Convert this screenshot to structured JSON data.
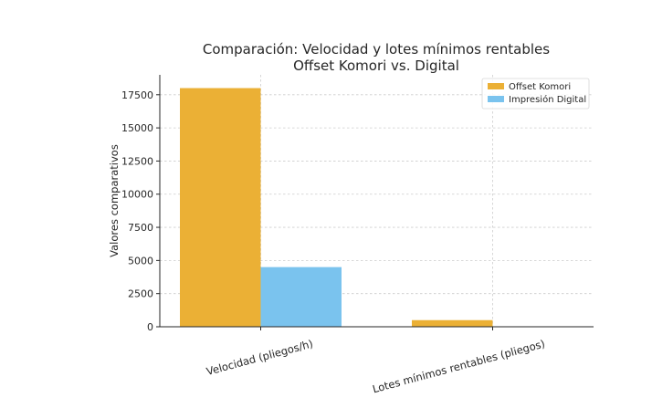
{
  "chart_data": {
    "type": "bar",
    "title_lines": [
      "Comparación: Velocidad y lotes mínimos rentables",
      "Offset Komori vs. Digital"
    ],
    "xlabel": "",
    "ylabel": "Valores comparativos",
    "categories": [
      "Velocidad (pliegos/h)",
      "Lotes mínimos rentables (pliegos)"
    ],
    "series": [
      {
        "name": "Offset Komori",
        "color": "#EBB035",
        "values": [
          18000,
          500
        ]
      },
      {
        "name": "Impresión Digital",
        "color": "#7AC3EE",
        "values": [
          4500,
          20
        ]
      }
    ],
    "ylim": [
      0,
      19000
    ],
    "yticks": [
      0,
      2500,
      5000,
      7500,
      10000,
      12500,
      15000,
      17500
    ],
    "grid": true,
    "legend_position": "top-right"
  }
}
